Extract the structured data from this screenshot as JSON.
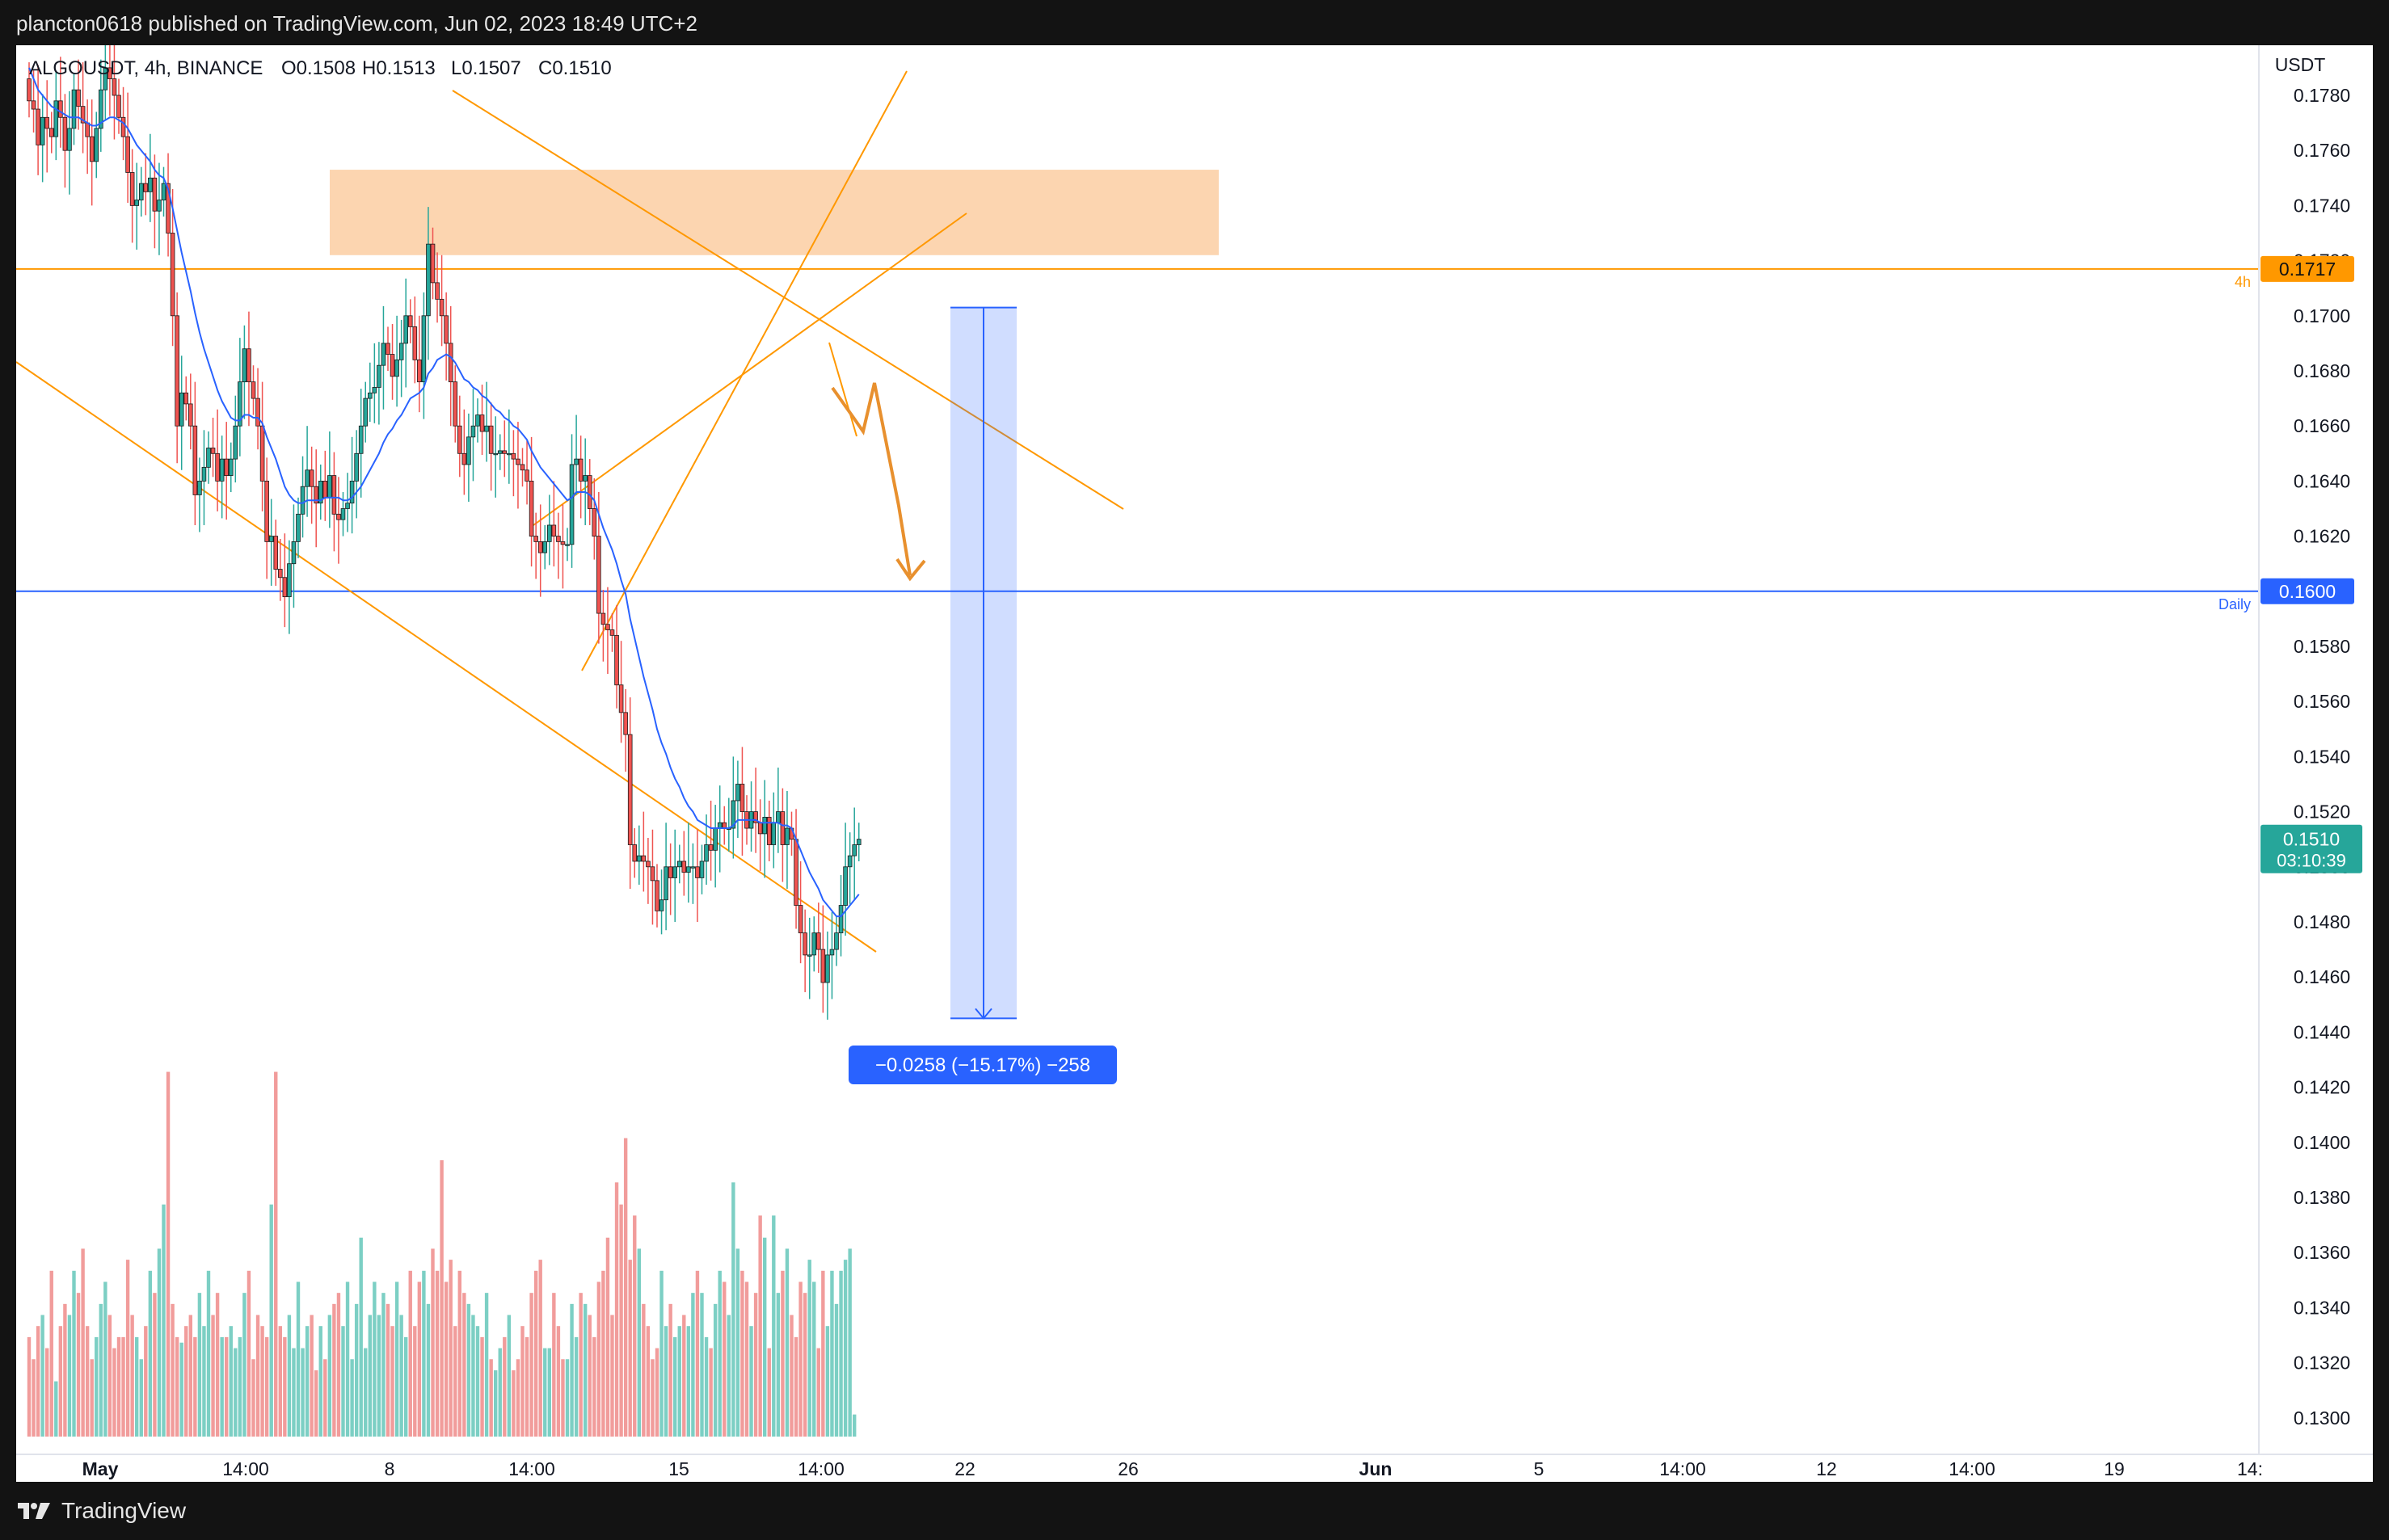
{
  "header": {
    "published_line": "plancton0618 published on TradingView.com, Jun 02, 2023 18:49 UTC+2"
  },
  "footer": {
    "brand": "TradingView"
  },
  "colors": {
    "up": "#26a69a",
    "down": "#ef5350",
    "ma": "#2962ff",
    "orange": "#ff9800",
    "zone": "#fcd5b0",
    "daily": "#2962ff",
    "measure": "#2962ff",
    "volume_up": "#7ccfc4",
    "volume_down": "#f19c9b"
  },
  "chart_data": {
    "type": "candlestick",
    "symbol": "ALGOUSDT",
    "interval": "4h",
    "exchange": "BINANCE",
    "legend": {
      "title": "ALGOUSDT, 4h, BINANCE",
      "o": "O0.1508",
      "h": "H0.1513",
      "l": "L0.1507",
      "c": "C0.1510"
    },
    "currency_label": "USDT",
    "y_ticks": [
      "0.1780",
      "0.1760",
      "0.1740",
      "0.1720",
      "0.1700",
      "0.1680",
      "0.1660",
      "0.1640",
      "0.1620",
      "0.1600",
      "0.1580",
      "0.1560",
      "0.1540",
      "0.1520",
      "0.1500",
      "0.1480",
      "0.1460",
      "0.1440",
      "0.1420",
      "0.1400",
      "0.1380",
      "0.1360",
      "0.1340",
      "0.1320",
      "0.1300"
    ],
    "ylim": [
      0.1295,
      0.1795
    ],
    "x_ticks": [
      "May",
      "14:00",
      "8",
      "14:00",
      "15",
      "14:00",
      "22",
      "26",
      "Jun",
      "5",
      "14:00",
      "12",
      "14:00",
      "19",
      "14:"
    ],
    "price_labels": [
      {
        "name": "4h-level",
        "value": "0.1717",
        "tag": "4h"
      },
      {
        "name": "daily-level",
        "value": "0.1600",
        "tag": "Daily"
      },
      {
        "name": "last-price",
        "value": "0.1510",
        "countdown": "03:10:39"
      }
    ],
    "measure_label": "−0.0258 (−15.17%) −258",
    "measure": {
      "from": 0.1703,
      "to": 0.1445
    },
    "resistance_zone": {
      "low": 0.1722,
      "high": 0.1753
    },
    "close_series": [
      0.1778,
      0.1775,
      0.1762,
      0.1772,
      0.1768,
      0.1765,
      0.1778,
      0.1772,
      0.176,
      0.1768,
      0.1782,
      0.1776,
      0.177,
      0.1765,
      0.1756,
      0.1768,
      0.1782,
      0.179,
      0.1786,
      0.178,
      0.1772,
      0.1765,
      0.1752,
      0.174,
      0.1742,
      0.1748,
      0.1745,
      0.175,
      0.1738,
      0.1742,
      0.1748,
      0.173,
      0.17,
      0.166,
      0.1672,
      0.1668,
      0.166,
      0.1635,
      0.164,
      0.1645,
      0.1652,
      0.165,
      0.164,
      0.1648,
      0.1642,
      0.1648,
      0.166,
      0.1676,
      0.1688,
      0.1676,
      0.167,
      0.166,
      0.164,
      0.1618,
      0.162,
      0.1608,
      0.1605,
      0.1598,
      0.161,
      0.1618,
      0.1628,
      0.1638,
      0.1644,
      0.1638,
      0.1632,
      0.164,
      0.1634,
      0.1642,
      0.1628,
      0.1626,
      0.163,
      0.1632,
      0.164,
      0.165,
      0.166,
      0.167,
      0.1672,
      0.1674,
      0.1682,
      0.169,
      0.1686,
      0.1678,
      0.1684,
      0.169,
      0.17,
      0.1696,
      0.1684,
      0.1676,
      0.17,
      0.1726,
      0.1712,
      0.1706,
      0.17,
      0.169,
      0.1676,
      0.166,
      0.165,
      0.1646,
      0.1656,
      0.166,
      0.1664,
      0.1658,
      0.166,
      0.165,
      0.165,
      0.1651,
      0.165,
      0.165,
      0.1648,
      0.1646,
      0.1644,
      0.164,
      0.162,
      0.1618,
      0.1614,
      0.1618,
      0.1624,
      0.162,
      0.1618,
      0.1617,
      0.1617,
      0.1646,
      0.1648,
      0.164,
      0.1642,
      0.163,
      0.162,
      0.1592,
      0.1588,
      0.1586,
      0.1584,
      0.1566,
      0.1556,
      0.1548,
      0.1508,
      0.1502,
      0.1504,
      0.1502,
      0.15,
      0.1495,
      0.1484,
      0.1488,
      0.15,
      0.1496,
      0.15,
      0.1502,
      0.1498,
      0.15,
      0.15,
      0.1496,
      0.1502,
      0.1508,
      0.1506,
      0.1514,
      0.1516,
      0.1514,
      0.1514,
      0.1524,
      0.153,
      0.152,
      0.1514,
      0.152,
      0.1516,
      0.1512,
      0.1518,
      0.1508,
      0.1516,
      0.152,
      0.1508,
      0.1514,
      0.151,
      0.1486,
      0.1476,
      0.1468,
      0.1468,
      0.1476,
      0.147,
      0.1458,
      0.1468,
      0.147,
      0.1476,
      0.1486,
      0.15,
      0.1504,
      0.1508,
      0.151
    ],
    "volume_series": [
      18,
      14,
      20,
      22,
      16,
      30,
      10,
      20,
      24,
      22,
      30,
      26,
      34,
      20,
      14,
      18,
      24,
      28,
      22,
      16,
      18,
      18,
      32,
      22,
      18,
      14,
      20,
      30,
      26,
      34,
      42,
      66,
      24,
      18,
      17,
      20,
      22,
      18,
      26,
      20,
      30,
      22,
      26,
      18,
      18,
      20,
      16,
      18,
      26,
      30,
      14,
      22,
      20,
      18,
      42,
      66,
      20,
      18,
      22,
      16,
      28,
      16,
      20,
      22,
      12,
      20,
      14,
      22,
      24,
      26,
      20,
      28,
      14,
      24,
      36,
      16,
      22,
      28,
      22,
      26,
      24,
      20,
      28,
      22,
      18,
      30,
      20,
      28,
      30,
      24,
      34,
      30,
      50,
      28,
      32,
      20,
      30,
      26,
      24,
      22,
      20,
      18,
      26,
      14,
      12,
      16,
      18,
      22,
      12,
      14,
      20,
      18,
      26,
      30,
      32,
      16,
      16,
      26,
      20,
      14,
      14,
      24,
      18,
      26,
      24,
      22,
      18,
      28,
      30,
      36,
      22,
      46,
      42,
      54,
      32,
      40,
      34,
      24,
      20,
      14,
      16,
      30,
      20,
      24,
      18,
      20,
      22,
      20,
      26,
      30,
      26,
      18,
      16,
      24,
      30,
      28,
      22,
      46,
      34,
      30,
      28,
      20,
      26,
      40,
      36,
      16,
      40,
      26,
      30,
      34,
      22,
      18,
      28,
      26,
      32,
      28,
      16,
      30,
      20,
      30,
      24,
      30,
      32,
      34,
      4
    ],
    "ma_series": [
      0.179,
      0.1786,
      0.1782,
      0.178,
      0.1778,
      0.1776,
      0.1775,
      0.1774,
      0.1773,
      0.1772,
      0.1772,
      0.1772,
      0.1771,
      0.177,
      0.1769,
      0.1769,
      0.177,
      0.1771,
      0.1772,
      0.1772,
      0.1771,
      0.177,
      0.1768,
      0.1765,
      0.1762,
      0.176,
      0.1758,
      0.1756,
      0.1753,
      0.1751,
      0.175,
      0.1746,
      0.1739,
      0.1731,
      0.1723,
      0.1716,
      0.1709,
      0.1701,
      0.1694,
      0.1688,
      0.1683,
      0.1678,
      0.1673,
      0.1669,
      0.1666,
      0.1663,
      0.1662,
      0.1662,
      0.1664,
      0.1664,
      0.1663,
      0.1663,
      0.1661,
      0.1656,
      0.1652,
      0.1648,
      0.1643,
      0.1638,
      0.1635,
      0.1633,
      0.1632,
      0.1632,
      0.1633,
      0.1633,
      0.1633,
      0.1633,
      0.1634,
      0.1634,
      0.1634,
      0.1634,
      0.1633,
      0.1633,
      0.1634,
      0.1636,
      0.1638,
      0.1641,
      0.1644,
      0.1647,
      0.165,
      0.1654,
      0.1657,
      0.1659,
      0.1662,
      0.1664,
      0.1667,
      0.167,
      0.1671,
      0.1672,
      0.1674,
      0.1679,
      0.1681,
      0.1684,
      0.1685,
      0.1686,
      0.1685,
      0.1683,
      0.168,
      0.1677,
      0.1676,
      0.1674,
      0.1673,
      0.1671,
      0.167,
      0.1668,
      0.1666,
      0.1665,
      0.1663,
      0.1662,
      0.166,
      0.1659,
      0.1657,
      0.1655,
      0.1651,
      0.1648,
      0.1645,
      0.1643,
      0.1641,
      0.1639,
      0.1637,
      0.1635,
      0.1633,
      0.1634,
      0.1636,
      0.1636,
      0.1636,
      0.1635,
      0.1633,
      0.1628,
      0.1623,
      0.1619,
      0.1615,
      0.161,
      0.1604,
      0.1599,
      0.159,
      0.1583,
      0.1576,
      0.1569,
      0.1563,
      0.1557,
      0.155,
      0.1545,
      0.1541,
      0.1536,
      0.1532,
      0.1529,
      0.1525,
      0.1522,
      0.152,
      0.1517,
      0.1516,
      0.1515,
      0.1514,
      0.1514,
      0.1514,
      0.1514,
      0.1514,
      0.1515,
      0.1517,
      0.1517,
      0.1517,
      0.1517,
      0.1517,
      0.1516,
      0.1516,
      0.1516,
      0.1516,
      0.1516,
      0.1515,
      0.1515,
      0.1514,
      0.151,
      0.1506,
      0.1502,
      0.1498,
      0.1495,
      0.1492,
      0.1488,
      0.1486,
      0.1484,
      0.1482,
      0.1482,
      0.1484,
      0.1486,
      0.1488,
      0.149
    ]
  }
}
